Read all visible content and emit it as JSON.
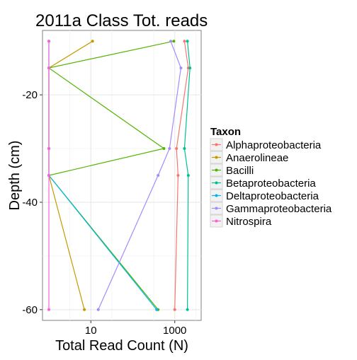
{
  "chart_data": {
    "type": "line",
    "title": "2011a Class Tot. reads",
    "xlabel": "Total Read Count (N)",
    "ylabel": "Depth (cm)",
    "x_scale": "log10",
    "xlim": [
      1,
      3000
    ],
    "ylim": [
      -62,
      -8
    ],
    "xticks": [
      10,
      1000
    ],
    "xtick_labels": [
      "10",
      "1000"
    ],
    "yticks": [
      -20,
      -40,
      -60
    ],
    "ytick_labels": [
      "-20",
      "-40",
      "-60"
    ],
    "grid": true,
    "legend": {
      "title": "Taxon",
      "position": "right"
    },
    "series": [
      {
        "name": "Alphaproteobacteria",
        "color": "#F8766D",
        "points": [
          [
            1700,
            -10
          ],
          [
            2100,
            -15
          ],
          [
            1100,
            -30
          ],
          [
            1200,
            -35
          ],
          [
            1000,
            -60
          ]
        ]
      },
      {
        "name": "Anaerolineae",
        "color": "#C49A00",
        "points": [
          [
            11,
            -10
          ],
          [
            1,
            -15
          ],
          [
            1,
            -30
          ],
          [
            1,
            -35
          ],
          [
            7,
            -60
          ]
        ]
      },
      {
        "name": "Bacilli",
        "color": "#53B400",
        "points": [
          [
            950,
            -10
          ],
          [
            1,
            -15
          ],
          [
            550,
            -30
          ],
          [
            1,
            -35
          ],
          [
            400,
            -60
          ]
        ]
      },
      {
        "name": "Betaproteobacteria",
        "color": "#00C094",
        "points": [
          [
            2000,
            -10
          ],
          [
            2300,
            -15
          ],
          [
            1700,
            -30
          ],
          [
            2100,
            -35
          ],
          [
            2000,
            -60
          ]
        ]
      },
      {
        "name": "Deltaproteobacteria",
        "color": "#00B6EB",
        "points": [
          [
            1,
            -10
          ],
          [
            1,
            -15
          ],
          [
            1,
            -30
          ],
          [
            1,
            -35
          ],
          [
            370,
            -60
          ]
        ]
      },
      {
        "name": "Gammaproteobacteria",
        "color": "#A58AFF",
        "points": [
          [
            800,
            -10
          ],
          [
            1400,
            -15
          ],
          [
            750,
            -30
          ],
          [
            400,
            -35
          ],
          [
            15,
            -60
          ]
        ]
      },
      {
        "name": "Nitrospira",
        "color": "#FB61D7",
        "points": [
          [
            1,
            -10
          ],
          [
            1,
            -15
          ],
          [
            1,
            -30
          ],
          [
            1,
            -35
          ],
          [
            1,
            -60
          ]
        ]
      }
    ]
  }
}
